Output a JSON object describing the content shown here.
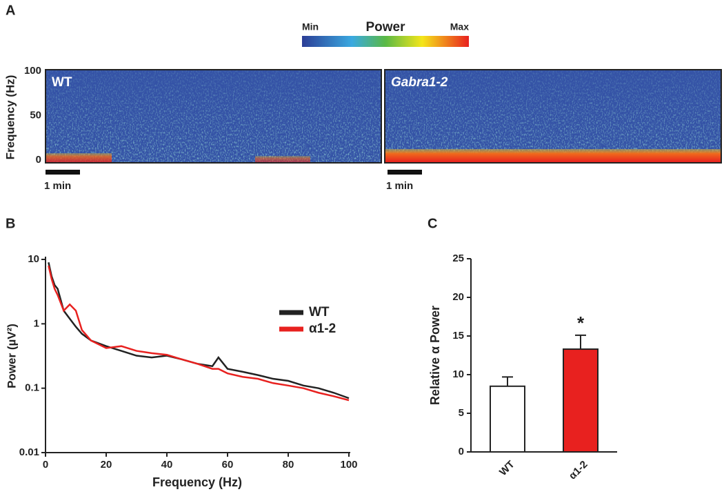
{
  "chart_data": [
    {
      "type": "spectrogram",
      "panel_label": "A",
      "ylabel": "Frequency (Hz)",
      "ylim": [
        0,
        100
      ],
      "yticks": [
        0,
        50,
        100
      ],
      "colorbar": {
        "min_label": "Min",
        "title": "Power",
        "max_label": "Max"
      },
      "panels": [
        {
          "title": "WT"
        },
        {
          "title": "Gabra1-2"
        }
      ],
      "scale_bar": "1 min"
    },
    {
      "type": "line",
      "panel_label": "B",
      "xlabel": "Frequency (Hz)",
      "ylabel": "Power (µV²)",
      "log_scale_y": true,
      "xlim": [
        0,
        100
      ],
      "xticks": [
        0,
        20,
        40,
        60,
        80,
        100
      ],
      "ylim": [
        0.01,
        10
      ],
      "yticks": [
        0.01,
        0.1,
        1,
        10
      ],
      "x": [
        1,
        2,
        3,
        4,
        6,
        8,
        10,
        12,
        15,
        20,
        25,
        30,
        35,
        40,
        45,
        50,
        55,
        57,
        60,
        65,
        70,
        75,
        80,
        85,
        90,
        95,
        100
      ],
      "series": [
        {
          "name": "WT",
          "color": "#222222",
          "values": [
            9,
            5.5,
            4,
            3.5,
            1.6,
            1.2,
            0.9,
            0.7,
            0.55,
            0.45,
            0.38,
            0.32,
            0.3,
            0.32,
            0.28,
            0.24,
            0.22,
            0.3,
            0.2,
            0.18,
            0.16,
            0.14,
            0.13,
            0.11,
            0.1,
            0.085,
            0.07
          ]
        },
        {
          "name": "α1-2",
          "color": "#e8211f",
          "values": [
            8,
            5,
            3.5,
            2.8,
            1.6,
            2.0,
            1.6,
            0.8,
            0.55,
            0.42,
            0.45,
            0.38,
            0.35,
            0.33,
            0.28,
            0.24,
            0.2,
            0.2,
            0.17,
            0.15,
            0.14,
            0.12,
            0.11,
            0.1,
            0.085,
            0.075,
            0.065
          ]
        }
      ]
    },
    {
      "type": "bar",
      "panel_label": "C",
      "ylabel": "Relative α Power",
      "categories": [
        "WT",
        "α1-2"
      ],
      "values": [
        8.5,
        13.3
      ],
      "errors": [
        1.2,
        1.8
      ],
      "colors": [
        "#ffffff",
        "#e8211f"
      ],
      "ylim": [
        0,
        25
      ],
      "yticks": [
        0,
        5,
        10,
        15,
        20,
        25
      ],
      "annotation": "*"
    }
  ]
}
